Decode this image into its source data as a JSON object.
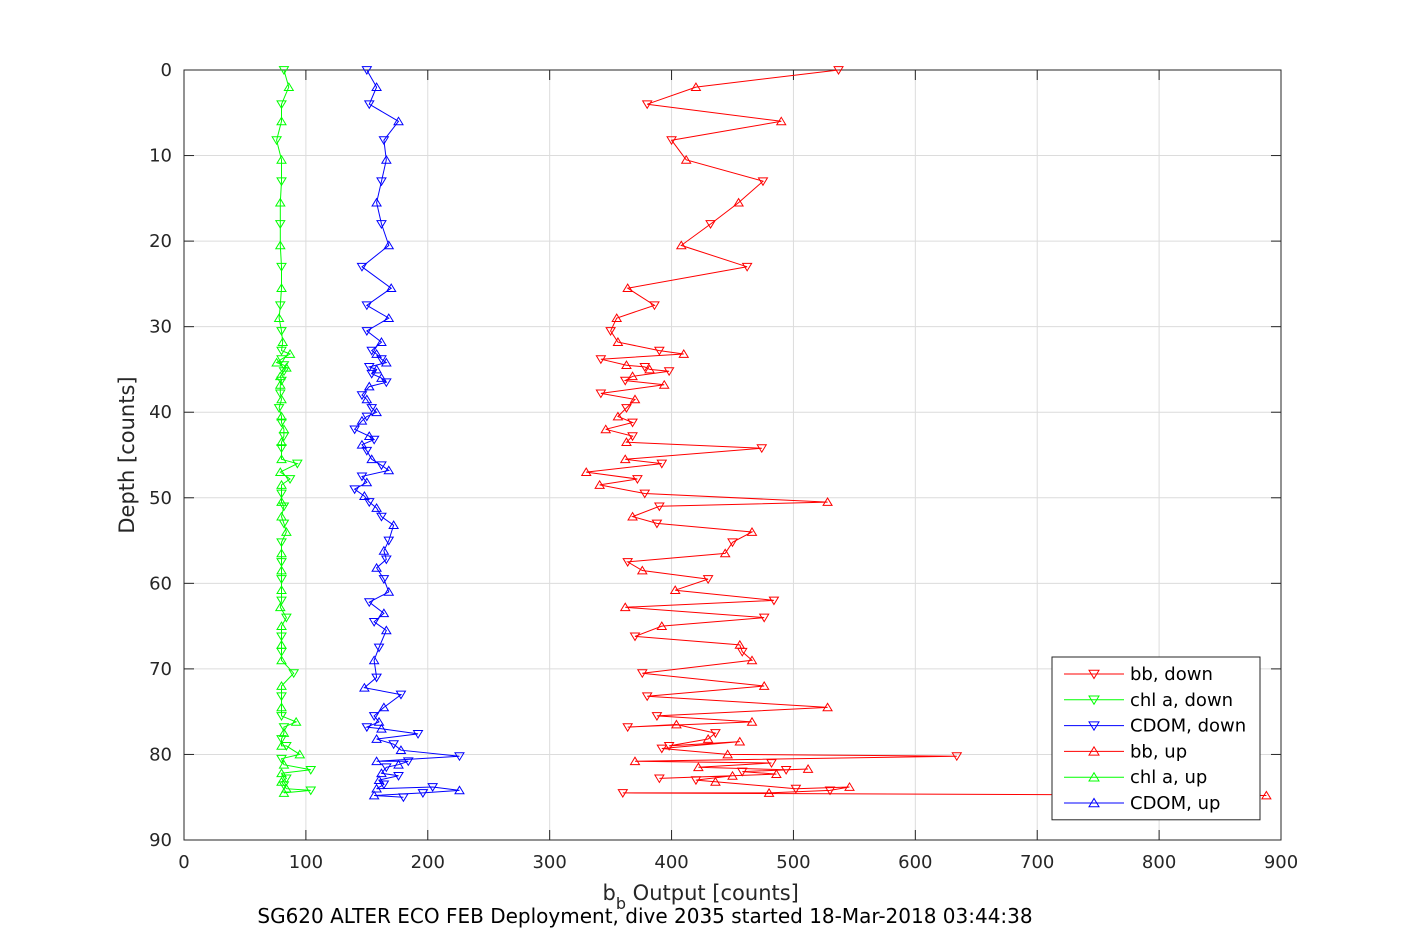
{
  "caption": "SG620 ALTER ECO FEB Deployment, dive 2035 started 18-Mar-2018 03:44:38",
  "chart_data": {
    "type": "line",
    "xlabel_main": "b",
    "xlabel_sub": "b",
    "xlabel_rest": " Output [counts]",
    "ylabel": "Depth [counts]",
    "xlim": [
      0,
      900
    ],
    "ylim": [
      0,
      90
    ],
    "y_reversed": true,
    "grid": true,
    "xticks": [
      0,
      100,
      200,
      300,
      400,
      500,
      600,
      700,
      800,
      900
    ],
    "yticks": [
      0,
      10,
      20,
      30,
      40,
      50,
      60,
      70,
      80,
      90
    ],
    "legend_position": "bottom-right",
    "series": [
      {
        "name": "bb, down",
        "color": "#ff0000",
        "marker": "triangle-down",
        "points": [
          [
            537,
            0
          ],
          [
            420,
            2
          ],
          [
            380,
            4
          ],
          [
            490,
            6
          ],
          [
            400,
            8.2
          ],
          [
            412,
            10.5
          ],
          [
            475,
            13
          ],
          [
            455,
            15.5
          ],
          [
            432,
            18
          ],
          [
            408,
            20.5
          ],
          [
            462,
            23
          ],
          [
            364,
            25.5
          ],
          [
            386,
            27.5
          ],
          [
            355,
            29
          ],
          [
            350,
            30.5
          ],
          [
            356,
            31.8
          ],
          [
            390,
            32.8
          ],
          [
            410,
            33.2
          ],
          [
            342,
            33.8
          ],
          [
            363,
            34.5
          ],
          [
            378,
            34.7
          ],
          [
            382,
            35
          ],
          [
            398,
            35.2
          ],
          [
            368,
            35.8
          ],
          [
            362,
            36.3
          ],
          [
            394,
            36.8
          ],
          [
            342,
            37.8
          ],
          [
            370,
            38.5
          ],
          [
            363,
            39.5
          ],
          [
            356,
            40.5
          ],
          [
            368,
            41.2
          ],
          [
            346,
            42
          ],
          [
            368,
            42.8
          ],
          [
            363,
            43.5
          ],
          [
            474,
            44.2
          ],
          [
            362,
            45.5
          ],
          [
            392,
            46
          ],
          [
            330,
            47
          ],
          [
            372,
            47.8
          ],
          [
            341,
            48.5
          ],
          [
            378,
            49.5
          ],
          [
            528,
            50.5
          ],
          [
            390,
            51
          ],
          [
            368,
            52.2
          ],
          [
            388,
            53
          ],
          [
            466,
            54
          ],
          [
            450,
            55.2
          ],
          [
            444,
            56.5
          ],
          [
            364,
            57.5
          ],
          [
            376,
            58.5
          ],
          [
            430,
            59.5
          ],
          [
            403,
            60.8
          ],
          [
            484,
            62
          ],
          [
            362,
            62.8
          ],
          [
            476,
            64
          ],
          [
            392,
            65
          ],
          [
            370,
            66.2
          ],
          [
            456,
            67.2
          ],
          [
            458,
            68
          ],
          [
            466,
            69
          ],
          [
            376,
            70.5
          ],
          [
            476,
            72
          ],
          [
            380,
            73.2
          ],
          [
            528,
            74.5
          ],
          [
            388,
            75.5
          ],
          [
            466,
            76.2
          ],
          [
            364,
            76.8
          ],
          [
            404,
            76.5
          ],
          [
            436,
            77.5
          ],
          [
            430,
            78.2
          ],
          [
            398,
            79
          ],
          [
            456,
            78.5
          ],
          [
            392,
            79.3
          ],
          [
            446,
            80
          ],
          [
            634,
            80.2
          ],
          [
            370,
            80.8
          ],
          [
            482,
            81
          ],
          [
            422,
            81.5
          ],
          [
            494,
            81.8
          ],
          [
            512,
            81.7
          ],
          [
            458,
            82
          ],
          [
            486,
            82.3
          ],
          [
            390,
            82.8
          ],
          [
            450,
            82.5
          ],
          [
            420,
            83
          ],
          [
            436,
            83.2
          ],
          [
            502,
            84
          ],
          [
            546,
            83.8
          ],
          [
            530,
            84.2
          ],
          [
            480,
            84.5
          ],
          [
            360,
            84.5
          ],
          [
            888,
            84.8
          ]
        ]
      },
      {
        "name": "chl a, down",
        "color": "#00ff00",
        "marker": "triangle-down",
        "points": [
          [
            82,
            0
          ],
          [
            86,
            2
          ],
          [
            80,
            4
          ],
          [
            80,
            6
          ],
          [
            76,
            8.2
          ],
          [
            80,
            10.5
          ],
          [
            80,
            13
          ],
          [
            79,
            15.5
          ],
          [
            79,
            18
          ],
          [
            79,
            20.5
          ],
          [
            80,
            23
          ],
          [
            80,
            25.5
          ],
          [
            79,
            27.5
          ],
          [
            78,
            29
          ],
          [
            80,
            30.5
          ],
          [
            81,
            31.8
          ],
          [
            80,
            32.8
          ],
          [
            87,
            33.2
          ],
          [
            80,
            33.8
          ],
          [
            76,
            34.2
          ],
          [
            82,
            34.5
          ],
          [
            84,
            34.8
          ],
          [
            82,
            35.2
          ],
          [
            79,
            35.8
          ],
          [
            80,
            36.3
          ],
          [
            79,
            36.8
          ],
          [
            79,
            37.8
          ],
          [
            80,
            38.5
          ],
          [
            78,
            39.5
          ],
          [
            80,
            40.5
          ],
          [
            80,
            41.2
          ],
          [
            82,
            42
          ],
          [
            82,
            42.8
          ],
          [
            80,
            43.5
          ],
          [
            80,
            44.2
          ],
          [
            80,
            45.5
          ],
          [
            93,
            46
          ],
          [
            79,
            47
          ],
          [
            87,
            47.8
          ],
          [
            80,
            48.5
          ],
          [
            80,
            49.5
          ],
          [
            80,
            50.5
          ],
          [
            82,
            51
          ],
          [
            80,
            52.2
          ],
          [
            82,
            53
          ],
          [
            84,
            54
          ],
          [
            80,
            55.2
          ],
          [
            80,
            56.5
          ],
          [
            80,
            57.5
          ],
          [
            80,
            58.5
          ],
          [
            80,
            59.5
          ],
          [
            80,
            60.8
          ],
          [
            80,
            62
          ],
          [
            79,
            62.8
          ],
          [
            84,
            64
          ],
          [
            80,
            65
          ],
          [
            80,
            66.2
          ],
          [
            80,
            67.2
          ],
          [
            80,
            68
          ],
          [
            80,
            69
          ],
          [
            90,
            70.5
          ],
          [
            80,
            72
          ],
          [
            80,
            73.2
          ],
          [
            80,
            74.5
          ],
          [
            80,
            75.5
          ],
          [
            92,
            76.2
          ],
          [
            82,
            76.8
          ],
          [
            82,
            77.5
          ],
          [
            80,
            78.2
          ],
          [
            80,
            79
          ],
          [
            84,
            79
          ],
          [
            95,
            80
          ],
          [
            80,
            80.5
          ],
          [
            82,
            81.2
          ],
          [
            104,
            81.8
          ],
          [
            80,
            82.2
          ],
          [
            84,
            82.8
          ],
          [
            80,
            83.2
          ],
          [
            82,
            83.6
          ],
          [
            84,
            84
          ],
          [
            104,
            84.2
          ],
          [
            82,
            84.5
          ]
        ]
      },
      {
        "name": "CDOM, down",
        "color": "#0000ff",
        "marker": "triangle-down",
        "points": [
          [
            150,
            0
          ],
          [
            158,
            2
          ],
          [
            152,
            4
          ],
          [
            176,
            6
          ],
          [
            164,
            8.2
          ],
          [
            166,
            10.5
          ],
          [
            162,
            13
          ],
          [
            158,
            15.5
          ],
          [
            162,
            18
          ],
          [
            168,
            20.5
          ],
          [
            146,
            23
          ],
          [
            170,
            25.5
          ],
          [
            150,
            27.5
          ],
          [
            168,
            29
          ],
          [
            150,
            30.5
          ],
          [
            162,
            31.8
          ],
          [
            154,
            32.8
          ],
          [
            158,
            33.2
          ],
          [
            162,
            33.8
          ],
          [
            166,
            34.2
          ],
          [
            152,
            34.7
          ],
          [
            158,
            35
          ],
          [
            154,
            35.5
          ],
          [
            162,
            36
          ],
          [
            166,
            36.5
          ],
          [
            152,
            37
          ],
          [
            146,
            38
          ],
          [
            150,
            38.5
          ],
          [
            154,
            39.5
          ],
          [
            158,
            40
          ],
          [
            150,
            40.5
          ],
          [
            146,
            41
          ],
          [
            140,
            42
          ],
          [
            152,
            42.8
          ],
          [
            156,
            43.2
          ],
          [
            146,
            43.8
          ],
          [
            150,
            44.5
          ],
          [
            154,
            45.5
          ],
          [
            162,
            46.2
          ],
          [
            168,
            46.8
          ],
          [
            146,
            47.5
          ],
          [
            150,
            48.2
          ],
          [
            140,
            49
          ],
          [
            148,
            49.8
          ],
          [
            152,
            50.5
          ],
          [
            158,
            51.2
          ],
          [
            162,
            52.2
          ],
          [
            172,
            53.2
          ],
          [
            168,
            55
          ],
          [
            164,
            56.2
          ],
          [
            166,
            57.2
          ],
          [
            158,
            58.2
          ],
          [
            164,
            59.5
          ],
          [
            168,
            61
          ],
          [
            152,
            62.2
          ],
          [
            164,
            63.5
          ],
          [
            156,
            64.5
          ],
          [
            166,
            65.5
          ],
          [
            160,
            67.5
          ],
          [
            156,
            69
          ],
          [
            158,
            71
          ],
          [
            148,
            72.2
          ],
          [
            178,
            73
          ],
          [
            164,
            74.5
          ],
          [
            156,
            75.5
          ],
          [
            160,
            76.2
          ],
          [
            150,
            76.8
          ],
          [
            162,
            77
          ],
          [
            192,
            77.6
          ],
          [
            158,
            78.2
          ],
          [
            172,
            78.8
          ],
          [
            178,
            79.5
          ],
          [
            226,
            80.2
          ],
          [
            158,
            80.8
          ],
          [
            184,
            80.8
          ],
          [
            176,
            81.2
          ],
          [
            166,
            81.5
          ],
          [
            162,
            82.2
          ],
          [
            176,
            82.5
          ],
          [
            160,
            83
          ],
          [
            164,
            83.5
          ],
          [
            158,
            84
          ],
          [
            204,
            83.8
          ],
          [
            226,
            84.2
          ],
          [
            196,
            84.5
          ],
          [
            156,
            84.8
          ],
          [
            180,
            85
          ]
        ]
      },
      {
        "name": "bb, up",
        "color": "#ff0000",
        "marker": "triangle-up",
        "points": [],
        "shares_line_with": "bb, down"
      },
      {
        "name": "chl a, up",
        "color": "#00ff00",
        "marker": "triangle-up",
        "points": [],
        "shares_line_with": "chl a, down"
      },
      {
        "name": "CDOM, up",
        "color": "#0000ff",
        "marker": "triangle-up",
        "points": [],
        "shares_line_with": "CDOM, down"
      }
    ]
  }
}
